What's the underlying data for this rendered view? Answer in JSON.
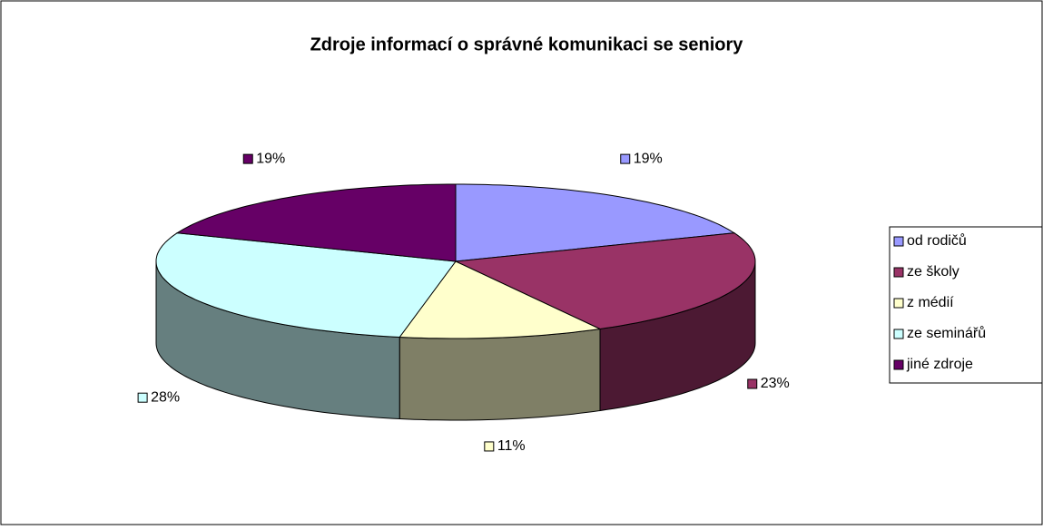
{
  "chart_data": {
    "type": "pie3d",
    "title": "Zdroje informací o správné komunikaci se seniory",
    "categories": [
      "od rodičů",
      "ze školy",
      "z médií",
      "ze seminářů",
      "jiné zdroje"
    ],
    "values": [
      19,
      23,
      11,
      28,
      19
    ],
    "value_labels": [
      "19%",
      "23%",
      "11%",
      "28%",
      "19%"
    ],
    "colors": [
      "#9999ff",
      "#993366",
      "#ffffcc",
      "#ccffff",
      "#660066"
    ],
    "legend": "right"
  }
}
